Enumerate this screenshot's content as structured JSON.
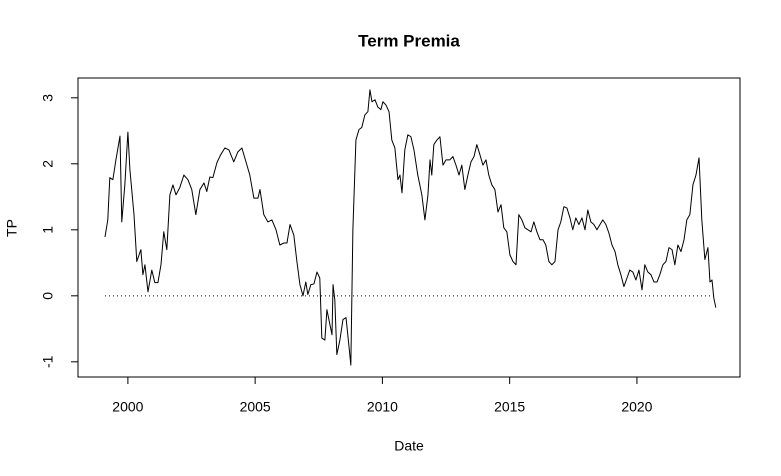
{
  "chart_data": {
    "type": "line",
    "title": "Term Premia",
    "x_label": "Date",
    "y_label": "TP",
    "xlim": [
      1998.04,
      2024.05
    ],
    "ylim": [
      -1.23,
      3.3
    ],
    "xticks": [
      2000,
      2005,
      2010,
      2015,
      2020
    ],
    "yticks": [
      -1,
      0,
      1,
      2,
      3
    ],
    "reference_line": 0,
    "grid": false,
    "series": [
      {
        "name": "TP",
        "color": "#000000",
        "x": [
          1999.1,
          1999.21,
          1999.29,
          1999.41,
          1999.53,
          1999.69,
          1999.76,
          1999.88,
          2000.0,
          2000.08,
          2000.24,
          2000.35,
          2000.51,
          2000.59,
          2000.67,
          2000.79,
          2000.94,
          2001.06,
          2001.18,
          2001.3,
          2001.41,
          2001.53,
          2001.65,
          2001.77,
          2001.89,
          2002.04,
          2002.2,
          2002.36,
          2002.51,
          2002.67,
          2002.83,
          2002.99,
          2003.1,
          2003.22,
          2003.34,
          2003.5,
          2003.65,
          2003.81,
          2003.97,
          2004.16,
          2004.32,
          2004.48,
          2004.64,
          2004.79,
          2004.95,
          2005.11,
          2005.19,
          2005.34,
          2005.5,
          2005.66,
          2005.82,
          2005.97,
          2006.13,
          2006.25,
          2006.37,
          2006.52,
          2006.64,
          2006.76,
          2006.88,
          2006.99,
          2007.07,
          2007.19,
          2007.31,
          2007.43,
          2007.54,
          2007.62,
          2007.74,
          2007.82,
          2007.94,
          2008.02,
          2008.06,
          2008.13,
          2008.21,
          2008.33,
          2008.45,
          2008.57,
          2008.68,
          2008.76,
          2008.84,
          2008.96,
          2009.08,
          2009.19,
          2009.31,
          2009.43,
          2009.51,
          2009.59,
          2009.71,
          2009.82,
          2009.94,
          2010.02,
          2010.14,
          2010.26,
          2010.37,
          2010.49,
          2010.61,
          2010.69,
          2010.77,
          2010.88,
          2011.0,
          2011.12,
          2011.24,
          2011.39,
          2011.55,
          2011.67,
          2011.79,
          2011.87,
          2011.94,
          2012.02,
          2012.14,
          2012.26,
          2012.38,
          2012.5,
          2012.65,
          2012.77,
          2012.89,
          2013.01,
          2013.12,
          2013.24,
          2013.36,
          2013.48,
          2013.6,
          2013.71,
          2013.83,
          2013.95,
          2014.07,
          2014.18,
          2014.3,
          2014.42,
          2014.54,
          2014.66,
          2014.77,
          2014.89,
          2015.01,
          2015.13,
          2015.25,
          2015.36,
          2015.48,
          2015.6,
          2015.72,
          2015.84,
          2015.95,
          2016.07,
          2016.19,
          2016.31,
          2016.42,
          2016.54,
          2016.66,
          2016.78,
          2016.9,
          2017.01,
          2017.13,
          2017.25,
          2017.37,
          2017.48,
          2017.6,
          2017.72,
          2017.84,
          2017.96,
          2018.07,
          2018.19,
          2018.31,
          2018.43,
          2018.55,
          2018.66,
          2018.78,
          2018.9,
          2019.02,
          2019.14,
          2019.25,
          2019.37,
          2019.49,
          2019.61,
          2019.72,
          2019.84,
          2019.96,
          2020.08,
          2020.2,
          2020.31,
          2020.43,
          2020.55,
          2020.67,
          2020.79,
          2020.9,
          2021.02,
          2021.14,
          2021.26,
          2021.38,
          2021.49,
          2021.61,
          2021.73,
          2021.85,
          2021.96,
          2022.08,
          2022.2,
          2022.32,
          2022.44,
          2022.55,
          2022.67,
          2022.79,
          2022.87,
          2022.95,
          2023.02,
          2023.1
        ],
        "values": [
          0.89,
          1.15,
          1.79,
          1.76,
          2.06,
          2.42,
          1.12,
          1.68,
          2.48,
          1.91,
          1.23,
          0.52,
          0.7,
          0.32,
          0.47,
          0.06,
          0.39,
          0.2,
          0.2,
          0.47,
          0.97,
          0.7,
          1.53,
          1.68,
          1.53,
          1.64,
          1.83,
          1.76,
          1.61,
          1.23,
          1.61,
          1.71,
          1.58,
          1.8,
          1.79,
          2.02,
          2.14,
          2.24,
          2.21,
          2.03,
          2.18,
          2.24,
          2.03,
          1.83,
          1.48,
          1.48,
          1.61,
          1.23,
          1.12,
          1.15,
          1.0,
          0.77,
          0.8,
          0.8,
          1.08,
          0.92,
          0.52,
          0.17,
          0.0,
          0.21,
          0.02,
          0.17,
          0.18,
          0.36,
          0.27,
          -0.64,
          -0.67,
          -0.21,
          -0.44,
          -0.59,
          0.17,
          -0.06,
          -0.89,
          -0.67,
          -0.36,
          -0.33,
          -0.74,
          -1.05,
          1.0,
          2.36,
          2.52,
          2.55,
          2.74,
          2.79,
          3.12,
          2.94,
          2.97,
          2.86,
          2.82,
          2.94,
          2.89,
          2.79,
          2.36,
          2.24,
          1.76,
          1.83,
          1.56,
          2.21,
          2.44,
          2.41,
          2.21,
          1.83,
          1.53,
          1.15,
          1.53,
          2.06,
          1.83,
          2.29,
          2.36,
          2.41,
          1.98,
          2.06,
          2.06,
          2.11,
          1.98,
          1.83,
          1.98,
          1.61,
          1.83,
          2.03,
          2.11,
          2.29,
          2.14,
          1.98,
          2.06,
          1.83,
          1.68,
          1.61,
          1.27,
          1.38,
          1.03,
          0.97,
          0.62,
          0.52,
          0.47,
          1.23,
          1.15,
          1.03,
          1.0,
          0.97,
          1.12,
          0.97,
          0.85,
          0.85,
          0.77,
          0.52,
          0.47,
          0.52,
          1.0,
          1.12,
          1.35,
          1.33,
          1.18,
          1.0,
          1.18,
          1.08,
          1.18,
          1.0,
          1.3,
          1.12,
          1.08,
          1.0,
          1.08,
          1.15,
          1.08,
          0.95,
          0.77,
          0.67,
          0.47,
          0.32,
          0.14,
          0.27,
          0.39,
          0.36,
          0.24,
          0.39,
          0.09,
          0.47,
          0.36,
          0.32,
          0.21,
          0.21,
          0.32,
          0.47,
          0.52,
          0.73,
          0.7,
          0.47,
          0.77,
          0.67,
          0.85,
          1.15,
          1.23,
          1.68,
          1.83,
          2.09,
          1.15,
          0.55,
          0.73,
          0.21,
          0.24,
          -0.03,
          -0.18
        ]
      }
    ]
  }
}
